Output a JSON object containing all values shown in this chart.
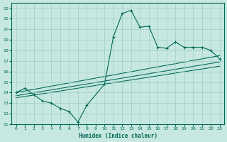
{
  "xlabel": "Humidex (Indice chaleur)",
  "bg_color": "#c6e8e0",
  "grid_color": "#9ecec6",
  "line_color": "#006858",
  "x_data": [
    0,
    1,
    2,
    3,
    4,
    5,
    6,
    7,
    8,
    10,
    11,
    12,
    13,
    14,
    15,
    16,
    17,
    18,
    19,
    20,
    21,
    22,
    23
  ],
  "y_data": [
    14.0,
    14.4,
    13.8,
    13.2,
    13.0,
    12.5,
    12.2,
    11.2,
    12.8,
    14.8,
    19.3,
    21.5,
    21.8,
    20.2,
    20.3,
    18.3,
    18.2,
    18.8,
    18.3,
    18.3,
    18.3,
    18.0,
    17.2
  ],
  "reg_lines": [
    {
      "x0": 0,
      "y0": 14.0,
      "x1": 23,
      "y1": 17.5
    },
    {
      "x0": 0,
      "y0": 13.7,
      "x1": 23,
      "y1": 16.9
    },
    {
      "x0": 0,
      "y0": 13.5,
      "x1": 23,
      "y1": 16.5
    }
  ],
  "ylim": [
    11,
    22.5
  ],
  "xlim": [
    -0.5,
    23.5
  ],
  "yticks": [
    11,
    12,
    13,
    14,
    15,
    16,
    17,
    18,
    19,
    20,
    21,
    22
  ],
  "xticks": [
    0,
    1,
    2,
    3,
    4,
    5,
    6,
    7,
    8,
    9,
    10,
    11,
    12,
    13,
    14,
    15,
    16,
    17,
    18,
    19,
    20,
    21,
    22,
    23
  ]
}
